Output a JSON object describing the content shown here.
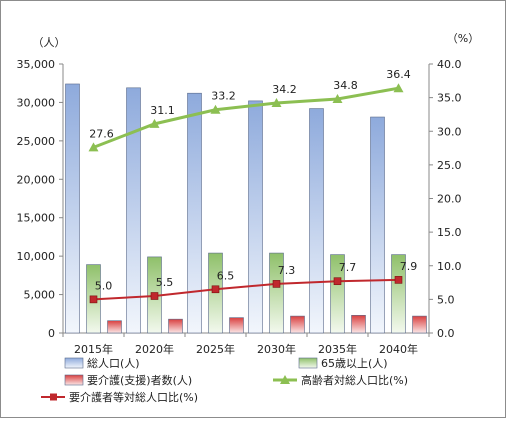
{
  "chart_data": {
    "type": "bar",
    "categories": [
      "2015年",
      "2020年",
      "2025年",
      "2030年",
      "2035年",
      "2040年"
    ],
    "y_left": {
      "unit": "（人）",
      "ylim": [
        0,
        35000
      ],
      "ticks": [
        "0",
        "5,000",
        "10,000",
        "15,000",
        "20,000",
        "25,000",
        "30,000",
        "35,000"
      ]
    },
    "y_right": {
      "unit": "（%）",
      "ylim": [
        0,
        40
      ],
      "ticks": [
        "0.0",
        "5.0",
        "10.0",
        "15.0",
        "20.0",
        "25.0",
        "30.0",
        "35.0",
        "40.0"
      ]
    },
    "series": [
      {
        "name": "総人口(人)",
        "kind": "bar",
        "axis": "left",
        "color": "#8eaadc",
        "values": [
          32400,
          31900,
          31200,
          30200,
          29200,
          28100
        ]
      },
      {
        "name": "65歳以上(人)",
        "kind": "bar",
        "axis": "left",
        "color": "#8fc06a",
        "values": [
          8900,
          9900,
          10400,
          10400,
          10200,
          10200
        ]
      },
      {
        "name": "要介護(支援)者数(人)",
        "kind": "bar",
        "axis": "left",
        "color": "#d94040",
        "values": [
          1600,
          1800,
          2000,
          2200,
          2300,
          2200
        ]
      },
      {
        "name": "高齢者対総人口比(%)",
        "kind": "line",
        "axis": "right",
        "color": "#8cbf52",
        "marker": "triangle",
        "values": [
          27.6,
          31.1,
          33.2,
          34.2,
          34.8,
          36.4
        ],
        "labels": [
          "27.6",
          "31.1",
          "33.2",
          "34.2",
          "34.8",
          "36.4"
        ]
      },
      {
        "name": "要介護者等対総人口比(%)",
        "kind": "line",
        "axis": "right",
        "color": "#c0282d",
        "marker": "square",
        "values": [
          5.0,
          5.5,
          6.5,
          7.3,
          7.7,
          7.9
        ],
        "labels": [
          "5.0",
          "5.5",
          "6.5",
          "7.3",
          "7.7",
          "7.9"
        ]
      }
    ],
    "legend": {
      "position": "bottom"
    },
    "grid": false
  }
}
